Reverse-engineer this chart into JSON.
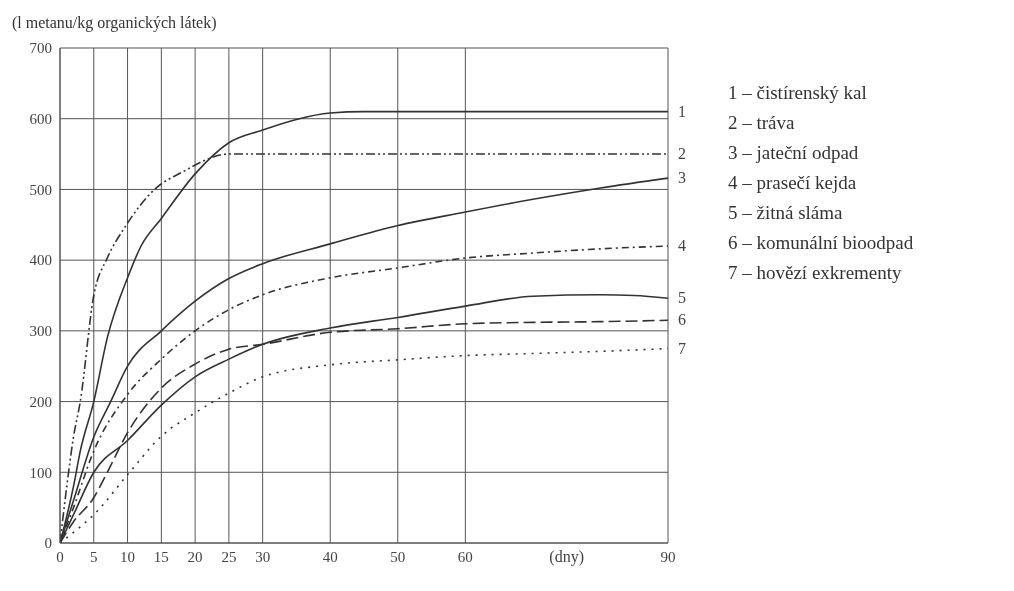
{
  "chart_data": {
    "type": "line",
    "ylabel": "(l metanu/kg organických látek)",
    "xlabel": "(dny)",
    "xlim": [
      0,
      90
    ],
    "xticks": [
      0,
      5,
      10,
      15,
      20,
      25,
      30,
      40,
      50,
      60,
      90
    ],
    "ylim": [
      0,
      700
    ],
    "yticks": [
      0,
      100,
      200,
      300,
      400,
      500,
      600,
      700
    ],
    "grid": true,
    "legend": false,
    "marker": "none",
    "series": [
      {
        "name": "1",
        "color": "#333333",
        "line_style": "solid",
        "x": [
          0,
          2,
          3,
          5,
          7,
          10,
          12,
          15,
          20,
          25,
          30,
          35,
          40,
          45,
          60,
          90
        ],
        "values": [
          0,
          80,
          130,
          200,
          290,
          375,
          420,
          459,
          522,
          566,
          584,
          599,
          608,
          610,
          610,
          610
        ]
      },
      {
        "name": "2",
        "color": "#333333",
        "line_style": "dashdotdot",
        "x": [
          0,
          1,
          2,
          3,
          5,
          7,
          9.5,
          14,
          18,
          25,
          40,
          60,
          90
        ],
        "values": [
          0,
          80,
          150,
          200,
          350,
          403,
          445,
          500,
          524,
          550,
          550,
          550,
          550
        ]
      },
      {
        "name": "3",
        "color": "#333333",
        "line_style": "solid",
        "x": [
          0,
          2,
          5,
          7.5,
          10,
          15,
          20,
          25,
          30,
          40,
          50,
          60,
          70,
          80,
          90
        ],
        "values": [
          0,
          60,
          150,
          200,
          250,
          300,
          342,
          374,
          395,
          423,
          449,
          468,
          486,
          502,
          516
        ]
      },
      {
        "name": "4",
        "color": "#333333",
        "line_style": "dashdot",
        "x": [
          0,
          2,
          5,
          10,
          15,
          20,
          25,
          30,
          40,
          50,
          60,
          70,
          80,
          90
        ],
        "values": [
          0,
          50,
          130,
          210,
          260,
          300,
          330,
          351,
          375,
          389,
          403,
          410,
          416,
          420
        ]
      },
      {
        "name": "5",
        "color": "#333333",
        "line_style": "solid",
        "x": [
          0,
          2,
          5,
          10,
          15,
          20,
          25,
          30,
          40,
          50,
          60,
          70,
          80,
          85,
          90
        ],
        "values": [
          0,
          40,
          100,
          145,
          195,
          235,
          260,
          281,
          304,
          319,
          335,
          349,
          351,
          350,
          346
        ]
      },
      {
        "name": "6",
        "color": "#333333",
        "line_style": "dashed",
        "x": [
          0,
          2,
          5,
          7,
          10,
          15,
          20,
          25,
          30,
          40,
          50,
          60,
          70,
          80,
          90
        ],
        "values": [
          0,
          30,
          64,
          100,
          156,
          219,
          253,
          274,
          281,
          298,
          303,
          310,
          312,
          313,
          315
        ]
      },
      {
        "name": "7",
        "color": "#333333",
        "line_style": "dotted",
        "x": [
          0,
          2,
          5,
          10.3,
          15,
          20,
          25,
          30,
          40,
          50,
          60,
          70,
          80,
          90
        ],
        "values": [
          0,
          15,
          40,
          100,
          151,
          184,
          212,
          235,
          252,
          259,
          265,
          268,
          271,
          275
        ]
      }
    ],
    "annotations": [
      "1 – čistírenský kal",
      "2 – tráva",
      "3 – jateční odpad",
      "4 – prasečí kejda",
      "5 – žitná sláma",
      "6 – komunální bioodpad",
      "7 – hovězí exkrementy"
    ]
  }
}
